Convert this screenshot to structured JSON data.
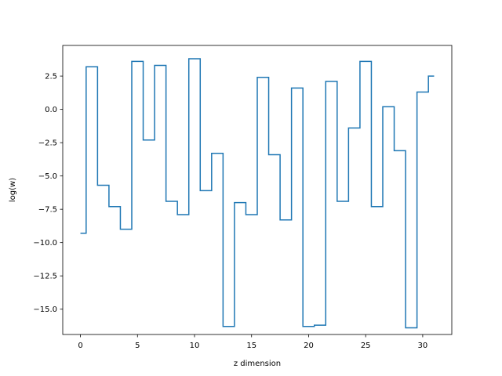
{
  "chart_data": {
    "type": "line",
    "drawstyle": "steps-mid",
    "title": "",
    "xlabel": "z dimension",
    "ylabel": "log(w)",
    "xlim": [
      -1.55,
      32.55
    ],
    "ylim": [
      -16.9,
      4.8
    ],
    "xticks": [
      0,
      5,
      10,
      15,
      20,
      25,
      30
    ],
    "yticks": [
      2.5,
      0.0,
      -2.5,
      -5.0,
      -7.5,
      -10.0,
      -12.5,
      -15.0
    ],
    "ytick_labels": [
      "2.5",
      "0.0",
      "−2.5",
      "−5.0",
      "−7.5",
      "−10.0",
      "−12.5",
      "−15.0"
    ],
    "grid": false,
    "legend": "none",
    "line_color": "#1f77b4",
    "series": [
      {
        "x": [
          0,
          1,
          2,
          3,
          4,
          5,
          6,
          7,
          8,
          9,
          10,
          11,
          12,
          13,
          14,
          15,
          16,
          17,
          18,
          19,
          20,
          21,
          22,
          23,
          24,
          25,
          26,
          27,
          28,
          29,
          30,
          31
        ],
        "values": [
          -9.3,
          3.2,
          -5.7,
          -7.3,
          -9.0,
          3.6,
          -2.3,
          3.3,
          -6.9,
          -7.9,
          3.8,
          -6.1,
          -3.3,
          -16.3,
          -7.0,
          -7.9,
          2.4,
          -3.4,
          -8.3,
          1.6,
          -16.3,
          -16.2,
          2.1,
          -6.9,
          -1.4,
          3.6,
          -7.3,
          0.2,
          -3.1,
          -16.4,
          1.3,
          2.5
        ]
      }
    ]
  }
}
